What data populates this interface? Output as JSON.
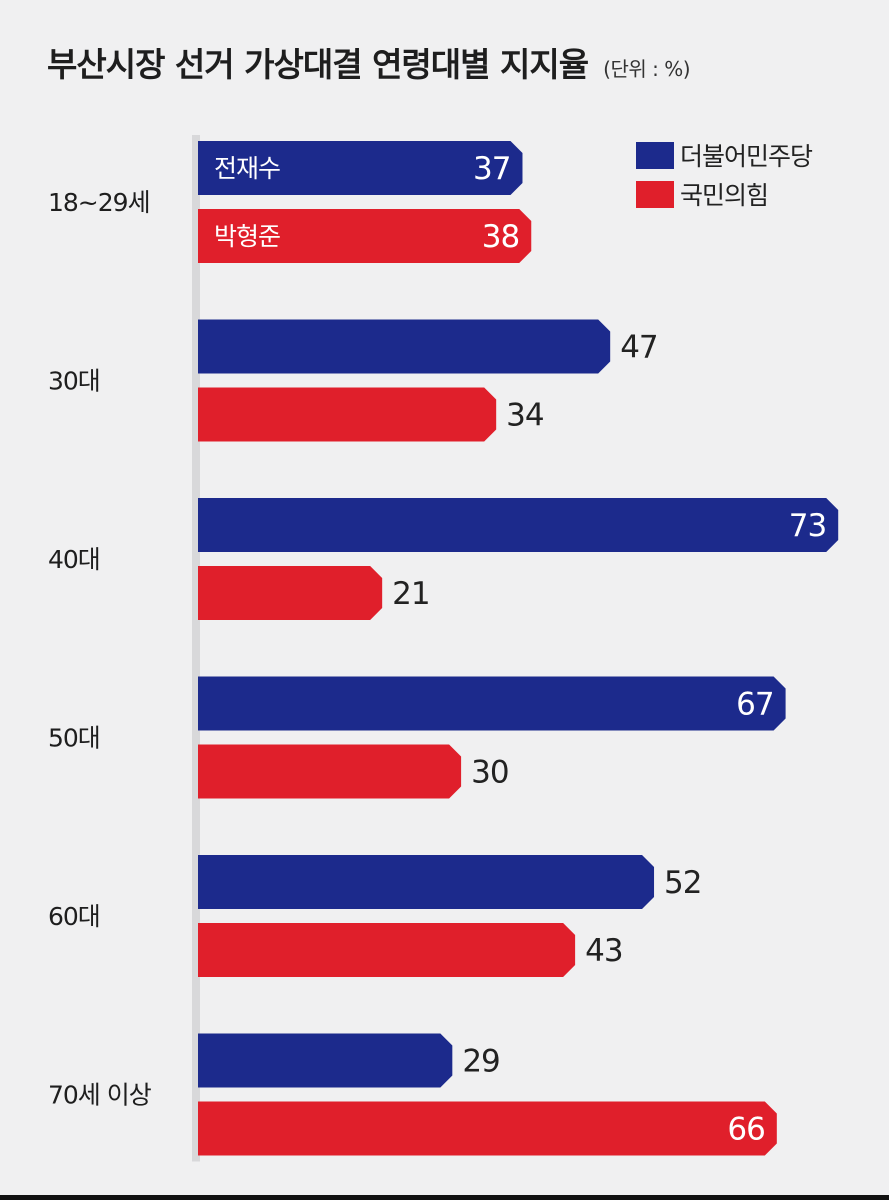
{
  "header": {
    "title": "부산시장 선거 가상대결 연령대별 지지율",
    "unit": "(단위 : %)"
  },
  "colors": {
    "blue": "#1c2a8c",
    "red": "#e01f2b",
    "axis": "#c8c8cc"
  },
  "chart_data": {
    "type": "bar",
    "orientation": "horizontal",
    "title": "부산시장 선거 가상대결 연령대별 지지율",
    "unit": "(단위 : %)",
    "categories": [
      "18~29세",
      "30대",
      "40대",
      "50대",
      "60대",
      "70세 이상"
    ],
    "series": [
      {
        "name": "더불어민주당",
        "candidate": "전재수",
        "color": "#1c2a8c",
        "values": [
          37,
          47,
          73,
          67,
          52,
          29
        ]
      },
      {
        "name": "국민의힘",
        "candidate": "박형준",
        "color": "#e01f2b",
        "values": [
          38,
          34,
          21,
          30,
          43,
          66
        ]
      }
    ],
    "legend_position": "top-right",
    "xlim": [
      0,
      73
    ],
    "grid": false
  }
}
